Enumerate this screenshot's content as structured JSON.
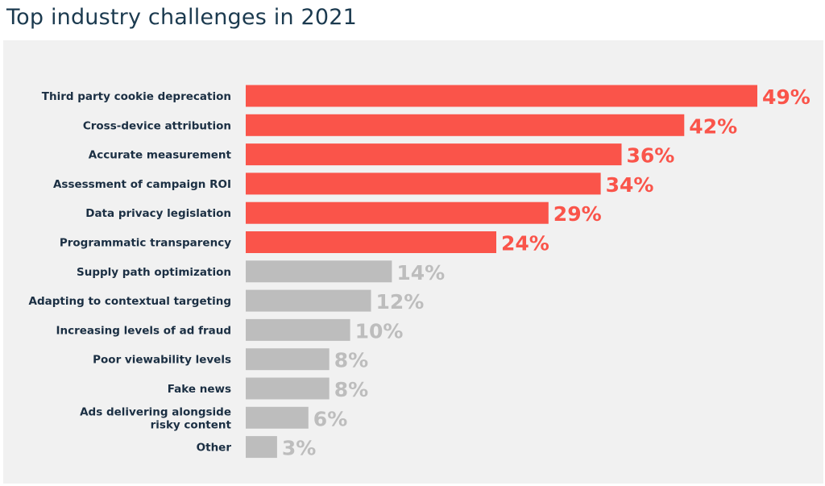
{
  "title": "Top industry challenges in 2021",
  "colors": {
    "highlight": "#fa544a",
    "muted": "#bdbdbd",
    "panel_background": "#f1f1f1",
    "label_text": "#1b2f43",
    "title_text": "#1b3a4f"
  },
  "chart_data": {
    "type": "bar",
    "orientation": "horizontal",
    "title": "Top industry challenges in 2021",
    "categories": [
      [
        "Third party cookie deprecation"
      ],
      [
        "Cross-device attribution"
      ],
      [
        "Accurate measurement"
      ],
      [
        "Assessment of campaign ROI"
      ],
      [
        "Data privacy legislation"
      ],
      [
        "Programmatic transparency"
      ],
      [
        "Supply path optimization"
      ],
      [
        "Adapting to contextual targeting"
      ],
      [
        "Increasing levels of ad fraud"
      ],
      [
        "Poor viewability levels"
      ],
      [
        "Fake news"
      ],
      [
        "Ads delivering alongside",
        "risky content"
      ],
      [
        "Other"
      ]
    ],
    "values": [
      49,
      42,
      36,
      34,
      29,
      24,
      14,
      12,
      10,
      8,
      8,
      6,
      3
    ],
    "value_labels": [
      "49%",
      "42%",
      "36%",
      "34%",
      "29%",
      "24%",
      "14%",
      "12%",
      "10%",
      "8%",
      "8%",
      "6%",
      "3%"
    ],
    "highlighted": [
      true,
      true,
      true,
      true,
      true,
      true,
      false,
      false,
      false,
      false,
      false,
      false,
      false
    ],
    "unit": "%",
    "xlim": [
      0,
      49
    ],
    "grid": false,
    "legend": false
  }
}
